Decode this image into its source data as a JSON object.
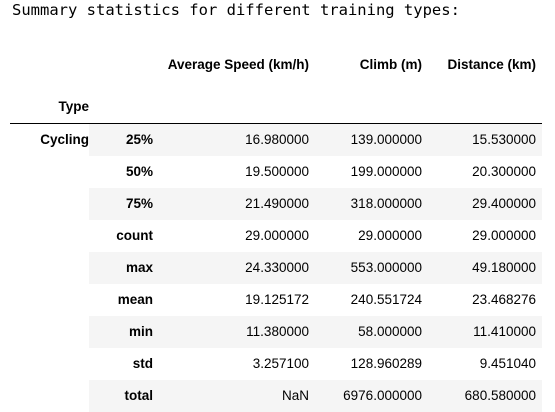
{
  "output_text": "Summary statistics for different training types:",
  "table": {
    "columns": [
      "Average Speed (km/h)",
      "Climb (m)",
      "Distance (km)"
    ],
    "index_name": "Type",
    "group": "Cycling",
    "rows": [
      {
        "stat": "25%",
        "speed": "16.980000",
        "climb": "139.000000",
        "distance": "15.530000"
      },
      {
        "stat": "50%",
        "speed": "19.500000",
        "climb": "199.000000",
        "distance": "20.300000"
      },
      {
        "stat": "75%",
        "speed": "21.490000",
        "climb": "318.000000",
        "distance": "29.400000"
      },
      {
        "stat": "count",
        "speed": "29.000000",
        "climb": "29.000000",
        "distance": "29.000000"
      },
      {
        "stat": "max",
        "speed": "24.330000",
        "climb": "553.000000",
        "distance": "49.180000"
      },
      {
        "stat": "mean",
        "speed": "19.125172",
        "climb": "240.551724",
        "distance": "23.468276"
      },
      {
        "stat": "min",
        "speed": "11.380000",
        "climb": "58.000000",
        "distance": "11.410000"
      },
      {
        "stat": "std",
        "speed": "3.257100",
        "climb": "128.960289",
        "distance": "9.451040"
      },
      {
        "stat": "total",
        "speed": "NaN",
        "climb": "6976.000000",
        "distance": "680.580000"
      }
    ]
  }
}
